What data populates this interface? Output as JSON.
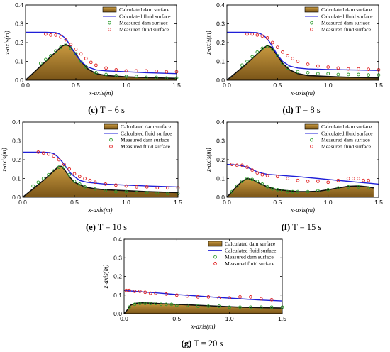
{
  "legend_labels": {
    "dam_calc": "Calculated dam surface",
    "fluid_calc": "Calculated fluid surface",
    "dam_meas": "Measured dam surface",
    "fluid_meas": "Measured fluid surface"
  },
  "colors": {
    "dam_fill_top": "#c99a40",
    "dam_fill_bottom": "#7a5518",
    "dam_line": "#111111",
    "fluid_line": "#1f1fd8",
    "dam_marker": "#2a9a2a",
    "fluid_marker": "#e02020"
  },
  "chart_data": [
    {
      "type": "area",
      "panel": "c",
      "caption_letter": "(c)",
      "caption_text": "T = 6 s",
      "xlabel": "x-axis(m)",
      "ylabel": "z-axis(m)",
      "xlim": [
        0,
        1.5
      ],
      "ylim": [
        0,
        0.4
      ],
      "xticks": [
        "0.0",
        "0.5",
        "1.0",
        "1.5"
      ],
      "yticks": [
        "0.0",
        "0.1",
        "0.2",
        "0.3",
        "0.4"
      ],
      "legend": "top-right",
      "series": [
        {
          "name": "Calculated dam surface",
          "x": [
            0,
            0.1,
            0.2,
            0.3,
            0.36,
            0.4,
            0.44,
            0.5,
            0.55,
            0.62,
            0.7,
            0.8,
            1.0,
            1.2,
            1.5
          ],
          "y": [
            0,
            0.05,
            0.1,
            0.15,
            0.18,
            0.19,
            0.18,
            0.14,
            0.1,
            0.06,
            0.035,
            0.025,
            0.018,
            0.014,
            0.01
          ]
        },
        {
          "name": "Calculated fluid surface",
          "x": [
            0,
            0.2,
            0.3,
            0.34,
            0.38,
            0.42,
            0.46,
            0.5,
            0.55,
            0.62,
            0.7,
            0.8,
            1.0,
            1.2,
            1.5
          ],
          "y": [
            0.255,
            0.255,
            0.253,
            0.245,
            0.23,
            0.205,
            0.17,
            0.135,
            0.1,
            0.07,
            0.055,
            0.05,
            0.045,
            0.04,
            0.035
          ]
        },
        {
          "name": "Measured dam surface",
          "x": [
            0.15,
            0.2,
            0.25,
            0.3,
            0.35,
            0.4,
            0.45,
            0.5,
            0.55,
            0.6,
            0.7,
            0.8,
            0.9,
            1.0,
            1.1,
            1.2,
            1.3,
            1.4,
            1.5
          ],
          "y": [
            0.09,
            0.11,
            0.13,
            0.155,
            0.175,
            0.19,
            0.17,
            0.14,
            0.1,
            0.07,
            0.04,
            0.03,
            0.025,
            0.02,
            0.02,
            0.015,
            0.015,
            0.012,
            0.012
          ]
        },
        {
          "name": "Measured fluid surface",
          "x": [
            0.2,
            0.25,
            0.3,
            0.35,
            0.4,
            0.45,
            0.5,
            0.55,
            0.6,
            0.65,
            0.7,
            0.8,
            0.9,
            1.0,
            1.1,
            1.2,
            1.3,
            1.4,
            1.5
          ],
          "y": [
            0.245,
            0.24,
            0.24,
            0.23,
            0.215,
            0.19,
            0.165,
            0.14,
            0.115,
            0.095,
            0.08,
            0.065,
            0.055,
            0.05,
            0.05,
            0.05,
            0.048,
            0.045,
            0.045
          ]
        }
      ]
    },
    {
      "type": "area",
      "panel": "d",
      "caption_letter": "(d)",
      "caption_text": "T = 8 s",
      "xlabel": "x-axis(m)",
      "ylabel": "z-axis(m)",
      "xlim": [
        0,
        1.5
      ],
      "ylim": [
        0,
        0.4
      ],
      "xticks": [
        "0.0",
        "0.5",
        "1.0",
        "1.5"
      ],
      "yticks": [
        "0.0",
        "0.1",
        "0.2",
        "0.3",
        "0.4"
      ],
      "legend": "top-right",
      "series": [
        {
          "name": "Calculated dam surface",
          "x": [
            0,
            0.1,
            0.2,
            0.3,
            0.36,
            0.4,
            0.44,
            0.5,
            0.55,
            0.62,
            0.7,
            0.8,
            1.0,
            1.2,
            1.5
          ],
          "y": [
            0,
            0.045,
            0.09,
            0.14,
            0.17,
            0.185,
            0.175,
            0.13,
            0.09,
            0.055,
            0.035,
            0.025,
            0.02,
            0.016,
            0.012
          ]
        },
        {
          "name": "Calculated fluid surface",
          "x": [
            0,
            0.2,
            0.3,
            0.34,
            0.38,
            0.42,
            0.46,
            0.5,
            0.55,
            0.62,
            0.7,
            0.8,
            1.0,
            1.2,
            1.5
          ],
          "y": [
            0.255,
            0.255,
            0.253,
            0.245,
            0.23,
            0.205,
            0.17,
            0.135,
            0.1,
            0.075,
            0.065,
            0.06,
            0.057,
            0.055,
            0.052
          ]
        },
        {
          "name": "Measured dam surface",
          "x": [
            0.15,
            0.2,
            0.25,
            0.3,
            0.35,
            0.4,
            0.45,
            0.5,
            0.55,
            0.6,
            0.7,
            0.8,
            0.9,
            1.0,
            1.1,
            1.2,
            1.3,
            1.4,
            1.5
          ],
          "y": [
            0.08,
            0.1,
            0.125,
            0.15,
            0.17,
            0.18,
            0.165,
            0.13,
            0.09,
            0.065,
            0.045,
            0.04,
            0.035,
            0.035,
            0.03,
            0.03,
            0.03,
            0.028,
            0.028
          ]
        },
        {
          "name": "Measured fluid surface",
          "x": [
            0.2,
            0.25,
            0.3,
            0.35,
            0.4,
            0.45,
            0.5,
            0.55,
            0.6,
            0.65,
            0.7,
            0.8,
            0.9,
            1.0,
            1.1,
            1.2,
            1.3,
            1.4,
            1.5
          ],
          "y": [
            0.245,
            0.245,
            0.24,
            0.235,
            0.225,
            0.2,
            0.175,
            0.15,
            0.13,
            0.115,
            0.1,
            0.085,
            0.075,
            0.07,
            0.065,
            0.06,
            0.06,
            0.058,
            0.055
          ]
        }
      ]
    },
    {
      "type": "area",
      "panel": "e",
      "caption_letter": "(e)",
      "caption_text": "T = 10 s",
      "xlabel": "x-axis(m)",
      "ylabel": "z-axis(m)",
      "xlim": [
        0,
        1.5
      ],
      "ylim": [
        0,
        0.4
      ],
      "xticks": [
        "0.0",
        "0.5",
        "1.0",
        "1.5"
      ],
      "yticks": [
        "0.0",
        "0.1",
        "0.2",
        "0.3",
        "0.4"
      ],
      "legend": "top-right",
      "series": [
        {
          "name": "Calculated dam surface",
          "x": [
            0,
            0.1,
            0.2,
            0.3,
            0.34,
            0.37,
            0.4,
            0.45,
            0.5,
            0.6,
            0.7,
            0.8,
            1.0,
            1.2,
            1.5
          ],
          "y": [
            0,
            0.045,
            0.09,
            0.14,
            0.16,
            0.165,
            0.15,
            0.11,
            0.08,
            0.055,
            0.045,
            0.04,
            0.035,
            0.03,
            0.025
          ]
        },
        {
          "name": "Calculated fluid surface",
          "x": [
            0,
            0.2,
            0.26,
            0.3,
            0.34,
            0.38,
            0.42,
            0.46,
            0.5,
            0.55,
            0.62,
            0.7,
            0.8,
            1.0,
            1.2,
            1.5
          ],
          "y": [
            0.24,
            0.24,
            0.238,
            0.232,
            0.215,
            0.19,
            0.16,
            0.13,
            0.11,
            0.09,
            0.08,
            0.075,
            0.07,
            0.065,
            0.06,
            0.055
          ]
        },
        {
          "name": "Measured dam surface",
          "x": [
            0.1,
            0.15,
            0.2,
            0.25,
            0.3,
            0.35,
            0.4,
            0.45,
            0.5,
            0.55,
            0.6,
            0.7,
            0.8,
            0.9,
            1.0,
            1.1,
            1.2,
            1.3,
            1.4,
            1.5
          ],
          "y": [
            0.06,
            0.08,
            0.1,
            0.12,
            0.14,
            0.16,
            0.16,
            0.12,
            0.085,
            0.07,
            0.055,
            0.045,
            0.035,
            0.03,
            0.03,
            0.025,
            0.025,
            0.022,
            0.02,
            0.02
          ]
        },
        {
          "name": "Measured fluid surface",
          "x": [
            0.15,
            0.2,
            0.25,
            0.3,
            0.35,
            0.4,
            0.45,
            0.5,
            0.55,
            0.6,
            0.65,
            0.7,
            0.8,
            0.9,
            1.0,
            1.1,
            1.2,
            1.3,
            1.4,
            1.5
          ],
          "y": [
            0.24,
            0.235,
            0.23,
            0.22,
            0.2,
            0.175,
            0.15,
            0.125,
            0.11,
            0.1,
            0.09,
            0.08,
            0.07,
            0.065,
            0.06,
            0.055,
            0.055,
            0.05,
            0.05,
            0.05
          ]
        }
      ]
    },
    {
      "type": "area",
      "panel": "f",
      "caption_letter": "(f)",
      "caption_text": "T = 15 s",
      "xlabel": "x-axis(m)",
      "ylabel": "z-axis(m)",
      "xlim": [
        0,
        1.5
      ],
      "ylim": [
        0,
        0.4
      ],
      "xticks": [
        "0.0",
        "0.5",
        "1.0",
        "1.5"
      ],
      "yticks": [
        "0.0",
        "0.1",
        "0.2",
        "0.3",
        "0.4"
      ],
      "legend": "top-right",
      "series": [
        {
          "name": "Calculated dam surface",
          "x": [
            0,
            0.05,
            0.1,
            0.15,
            0.2,
            0.25,
            0.3,
            0.4,
            0.5,
            0.6,
            0.7,
            0.8,
            0.9,
            1.0,
            1.1,
            1.2,
            1.3,
            1.4,
            1.45
          ],
          "y": [
            0,
            0.03,
            0.06,
            0.085,
            0.1,
            0.095,
            0.08,
            0.055,
            0.04,
            0.035,
            0.03,
            0.03,
            0.032,
            0.04,
            0.05,
            0.058,
            0.06,
            0.055,
            0.05
          ]
        },
        {
          "name": "Calculated fluid surface",
          "x": [
            0,
            0.1,
            0.15,
            0.2,
            0.25,
            0.3,
            0.35,
            0.4,
            0.5,
            0.6,
            0.7,
            0.8,
            0.9,
            1.0,
            1.1,
            1.2,
            1.3,
            1.4,
            1.5
          ],
          "y": [
            0.175,
            0.172,
            0.168,
            0.16,
            0.148,
            0.135,
            0.128,
            0.122,
            0.118,
            0.114,
            0.11,
            0.105,
            0.1,
            0.095,
            0.09,
            0.085,
            0.08,
            0.075,
            0.07
          ]
        },
        {
          "name": "Measured dam surface",
          "x": [
            0.05,
            0.1,
            0.15,
            0.2,
            0.25,
            0.3,
            0.35,
            0.4,
            0.45,
            0.5,
            0.55,
            0.6,
            0.65,
            0.7,
            0.8,
            0.9,
            1.0,
            1.1,
            1.2,
            1.3,
            1.4
          ],
          "y": [
            0.03,
            0.06,
            0.085,
            0.1,
            0.095,
            0.085,
            0.07,
            0.055,
            0.045,
            0.04,
            0.035,
            0.03,
            0.03,
            0.03,
            0.03,
            0.035,
            0.04,
            0.05,
            0.055,
            0.055,
            0.05
          ]
        },
        {
          "name": "Measured fluid surface",
          "x": [
            0.05,
            0.1,
            0.15,
            0.2,
            0.25,
            0.3,
            0.35,
            0.4,
            0.5,
            0.6,
            0.7,
            0.8,
            0.9,
            1.0,
            1.1,
            1.2,
            1.25,
            1.3,
            1.35,
            1.4
          ],
          "y": [
            0.175,
            0.17,
            0.17,
            0.16,
            0.145,
            0.13,
            0.12,
            0.115,
            0.11,
            0.1,
            0.09,
            0.085,
            0.085,
            0.08,
            0.09,
            0.1,
            0.1,
            0.1,
            0.09,
            0.09
          ]
        }
      ]
    },
    {
      "type": "area",
      "panel": "g",
      "caption_letter": "(g)",
      "caption_text": "T = 20 s",
      "xlabel": "x-axis(m)",
      "ylabel": "z-axis(m)",
      "xlim": [
        0,
        1.5
      ],
      "ylim": [
        0,
        0.4
      ],
      "xticks": [
        "0.0",
        "0.5",
        "1.0",
        "1.5"
      ],
      "yticks": [
        "0.0",
        "0.1",
        "0.2",
        "0.3",
        "0.4"
      ],
      "legend": "top-right",
      "series": [
        {
          "name": "Calculated dam surface",
          "x": [
            0,
            0.03,
            0.06,
            0.1,
            0.15,
            0.2,
            0.3,
            0.5,
            0.7,
            0.9,
            1.1,
            1.3,
            1.5
          ],
          "y": [
            0,
            0.02,
            0.045,
            0.055,
            0.058,
            0.058,
            0.055,
            0.05,
            0.045,
            0.04,
            0.035,
            0.032,
            0.03
          ]
        },
        {
          "name": "Calculated fluid surface",
          "x": [
            0,
            0.1,
            0.3,
            0.5,
            0.7,
            0.9,
            1.1,
            1.3,
            1.5
          ],
          "y": [
            0.125,
            0.12,
            0.112,
            0.103,
            0.095,
            0.087,
            0.08,
            0.073,
            0.068
          ]
        },
        {
          "name": "Measured dam surface",
          "x": [
            0.05,
            0.1,
            0.15,
            0.2,
            0.25,
            0.3,
            0.35,
            0.4,
            0.45,
            0.5,
            0.6,
            0.7,
            0.8,
            0.9,
            1.0,
            1.1,
            1.2,
            1.3,
            1.4,
            1.5
          ],
          "y": [
            0.035,
            0.05,
            0.055,
            0.055,
            0.055,
            0.055,
            0.05,
            0.05,
            0.05,
            0.045,
            0.045,
            0.04,
            0.04,
            0.04,
            0.035,
            0.035,
            0.035,
            0.035,
            0.035,
            0.035
          ]
        },
        {
          "name": "Measured fluid surface",
          "x": [
            0.02,
            0.05,
            0.1,
            0.15,
            0.2,
            0.25,
            0.3,
            0.4,
            0.5,
            0.6,
            0.7,
            0.8,
            0.9,
            1.0,
            1.1,
            1.2,
            1.3,
            1.4
          ],
          "y": [
            0.125,
            0.125,
            0.12,
            0.12,
            0.115,
            0.11,
            0.11,
            0.105,
            0.1,
            0.095,
            0.09,
            0.09,
            0.085,
            0.085,
            0.09,
            0.09,
            0.08,
            0.075
          ]
        }
      ]
    }
  ]
}
